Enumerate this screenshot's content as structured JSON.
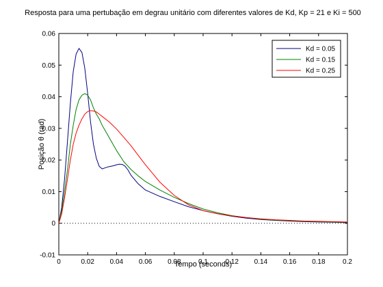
{
  "chart_data": {
    "type": "line",
    "title": "Resposta para uma pertubação em degrau unitário com diferentes valores de Kd, Kp = 21 e Ki = 500",
    "xlabel": "Tempo (seconds)",
    "ylabel": "Posição θ (rad)",
    "xlim": [
      0,
      0.2
    ],
    "ylim": [
      -0.01,
      0.06
    ],
    "xticks": [
      "0",
      "0.02",
      "0.04",
      "0.06",
      "0.08",
      "0.1",
      "0.12",
      "0.14",
      "0.16",
      "0.18",
      "0.2"
    ],
    "yticks": [
      "-0.01",
      "0",
      "0.01",
      "0.02",
      "0.03",
      "0.04",
      "0.05",
      "0.06"
    ],
    "grid": false,
    "legend_position": "top-right",
    "reference_line": {
      "y": 0,
      "style": "dotted"
    },
    "series": [
      {
        "name": "Kd = 0.05",
        "color": "#00007f",
        "x": [
          0,
          0.002,
          0.004,
          0.006,
          0.008,
          0.01,
          0.012,
          0.014,
          0.016,
          0.018,
          0.02,
          0.022,
          0.024,
          0.026,
          0.028,
          0.03,
          0.032,
          0.034,
          0.036,
          0.038,
          0.04,
          0.042,
          0.044,
          0.046,
          0.048,
          0.05,
          0.055,
          0.06,
          0.07,
          0.08,
          0.09,
          0.1,
          0.11,
          0.12,
          0.13,
          0.14,
          0.15,
          0.16,
          0.17,
          0.18,
          0.19,
          0.2
        ],
        "y": [
          0,
          0.005,
          0.014,
          0.026,
          0.038,
          0.048,
          0.0535,
          0.0553,
          0.054,
          0.049,
          0.041,
          0.032,
          0.025,
          0.0205,
          0.018,
          0.0172,
          0.0175,
          0.0178,
          0.018,
          0.0182,
          0.0185,
          0.0187,
          0.0186,
          0.018,
          0.0168,
          0.0152,
          0.0125,
          0.0105,
          0.0085,
          0.0068,
          0.0052,
          0.004,
          0.003,
          0.0022,
          0.0016,
          0.0012,
          0.0009,
          0.0007,
          0.0005,
          0.0004,
          0.0003,
          0.0002
        ]
      },
      {
        "name": "Kd = 0.15",
        "color": "#008000",
        "x": [
          0,
          0.002,
          0.004,
          0.006,
          0.008,
          0.01,
          0.012,
          0.014,
          0.016,
          0.018,
          0.02,
          0.022,
          0.024,
          0.026,
          0.028,
          0.03,
          0.035,
          0.04,
          0.045,
          0.05,
          0.055,
          0.06,
          0.07,
          0.08,
          0.09,
          0.1,
          0.11,
          0.12,
          0.13,
          0.14,
          0.15,
          0.16,
          0.17,
          0.18,
          0.19,
          0.2
        ],
        "y": [
          0,
          0.004,
          0.01,
          0.017,
          0.025,
          0.031,
          0.036,
          0.039,
          0.0405,
          0.041,
          0.0405,
          0.039,
          0.0365,
          0.0345,
          0.033,
          0.031,
          0.027,
          0.023,
          0.0195,
          0.017,
          0.015,
          0.0132,
          0.0105,
          0.0082,
          0.0062,
          0.0045,
          0.0033,
          0.0024,
          0.0018,
          0.0013,
          0.001,
          0.0008,
          0.0006,
          0.0005,
          0.0004,
          0.0003
        ]
      },
      {
        "name": "Kd = 0.25",
        "color": "#ff0000",
        "x": [
          0,
          0.002,
          0.004,
          0.006,
          0.008,
          0.01,
          0.012,
          0.014,
          0.016,
          0.018,
          0.02,
          0.022,
          0.024,
          0.026,
          0.028,
          0.03,
          0.035,
          0.04,
          0.045,
          0.05,
          0.055,
          0.06,
          0.07,
          0.08,
          0.09,
          0.1,
          0.11,
          0.12,
          0.13,
          0.14,
          0.15,
          0.16,
          0.17,
          0.18,
          0.19,
          0.2
        ],
        "y": [
          0,
          0.003,
          0.008,
          0.014,
          0.02,
          0.025,
          0.0285,
          0.031,
          0.033,
          0.0345,
          0.0353,
          0.0356,
          0.0355,
          0.0352,
          0.0345,
          0.0338,
          0.032,
          0.0298,
          0.0272,
          0.0245,
          0.0215,
          0.0185,
          0.013,
          0.0088,
          0.0058,
          0.004,
          0.003,
          0.0023,
          0.0018,
          0.0014,
          0.0011,
          0.0009,
          0.0007,
          0.0006,
          0.0005,
          0.0004
        ]
      }
    ]
  }
}
